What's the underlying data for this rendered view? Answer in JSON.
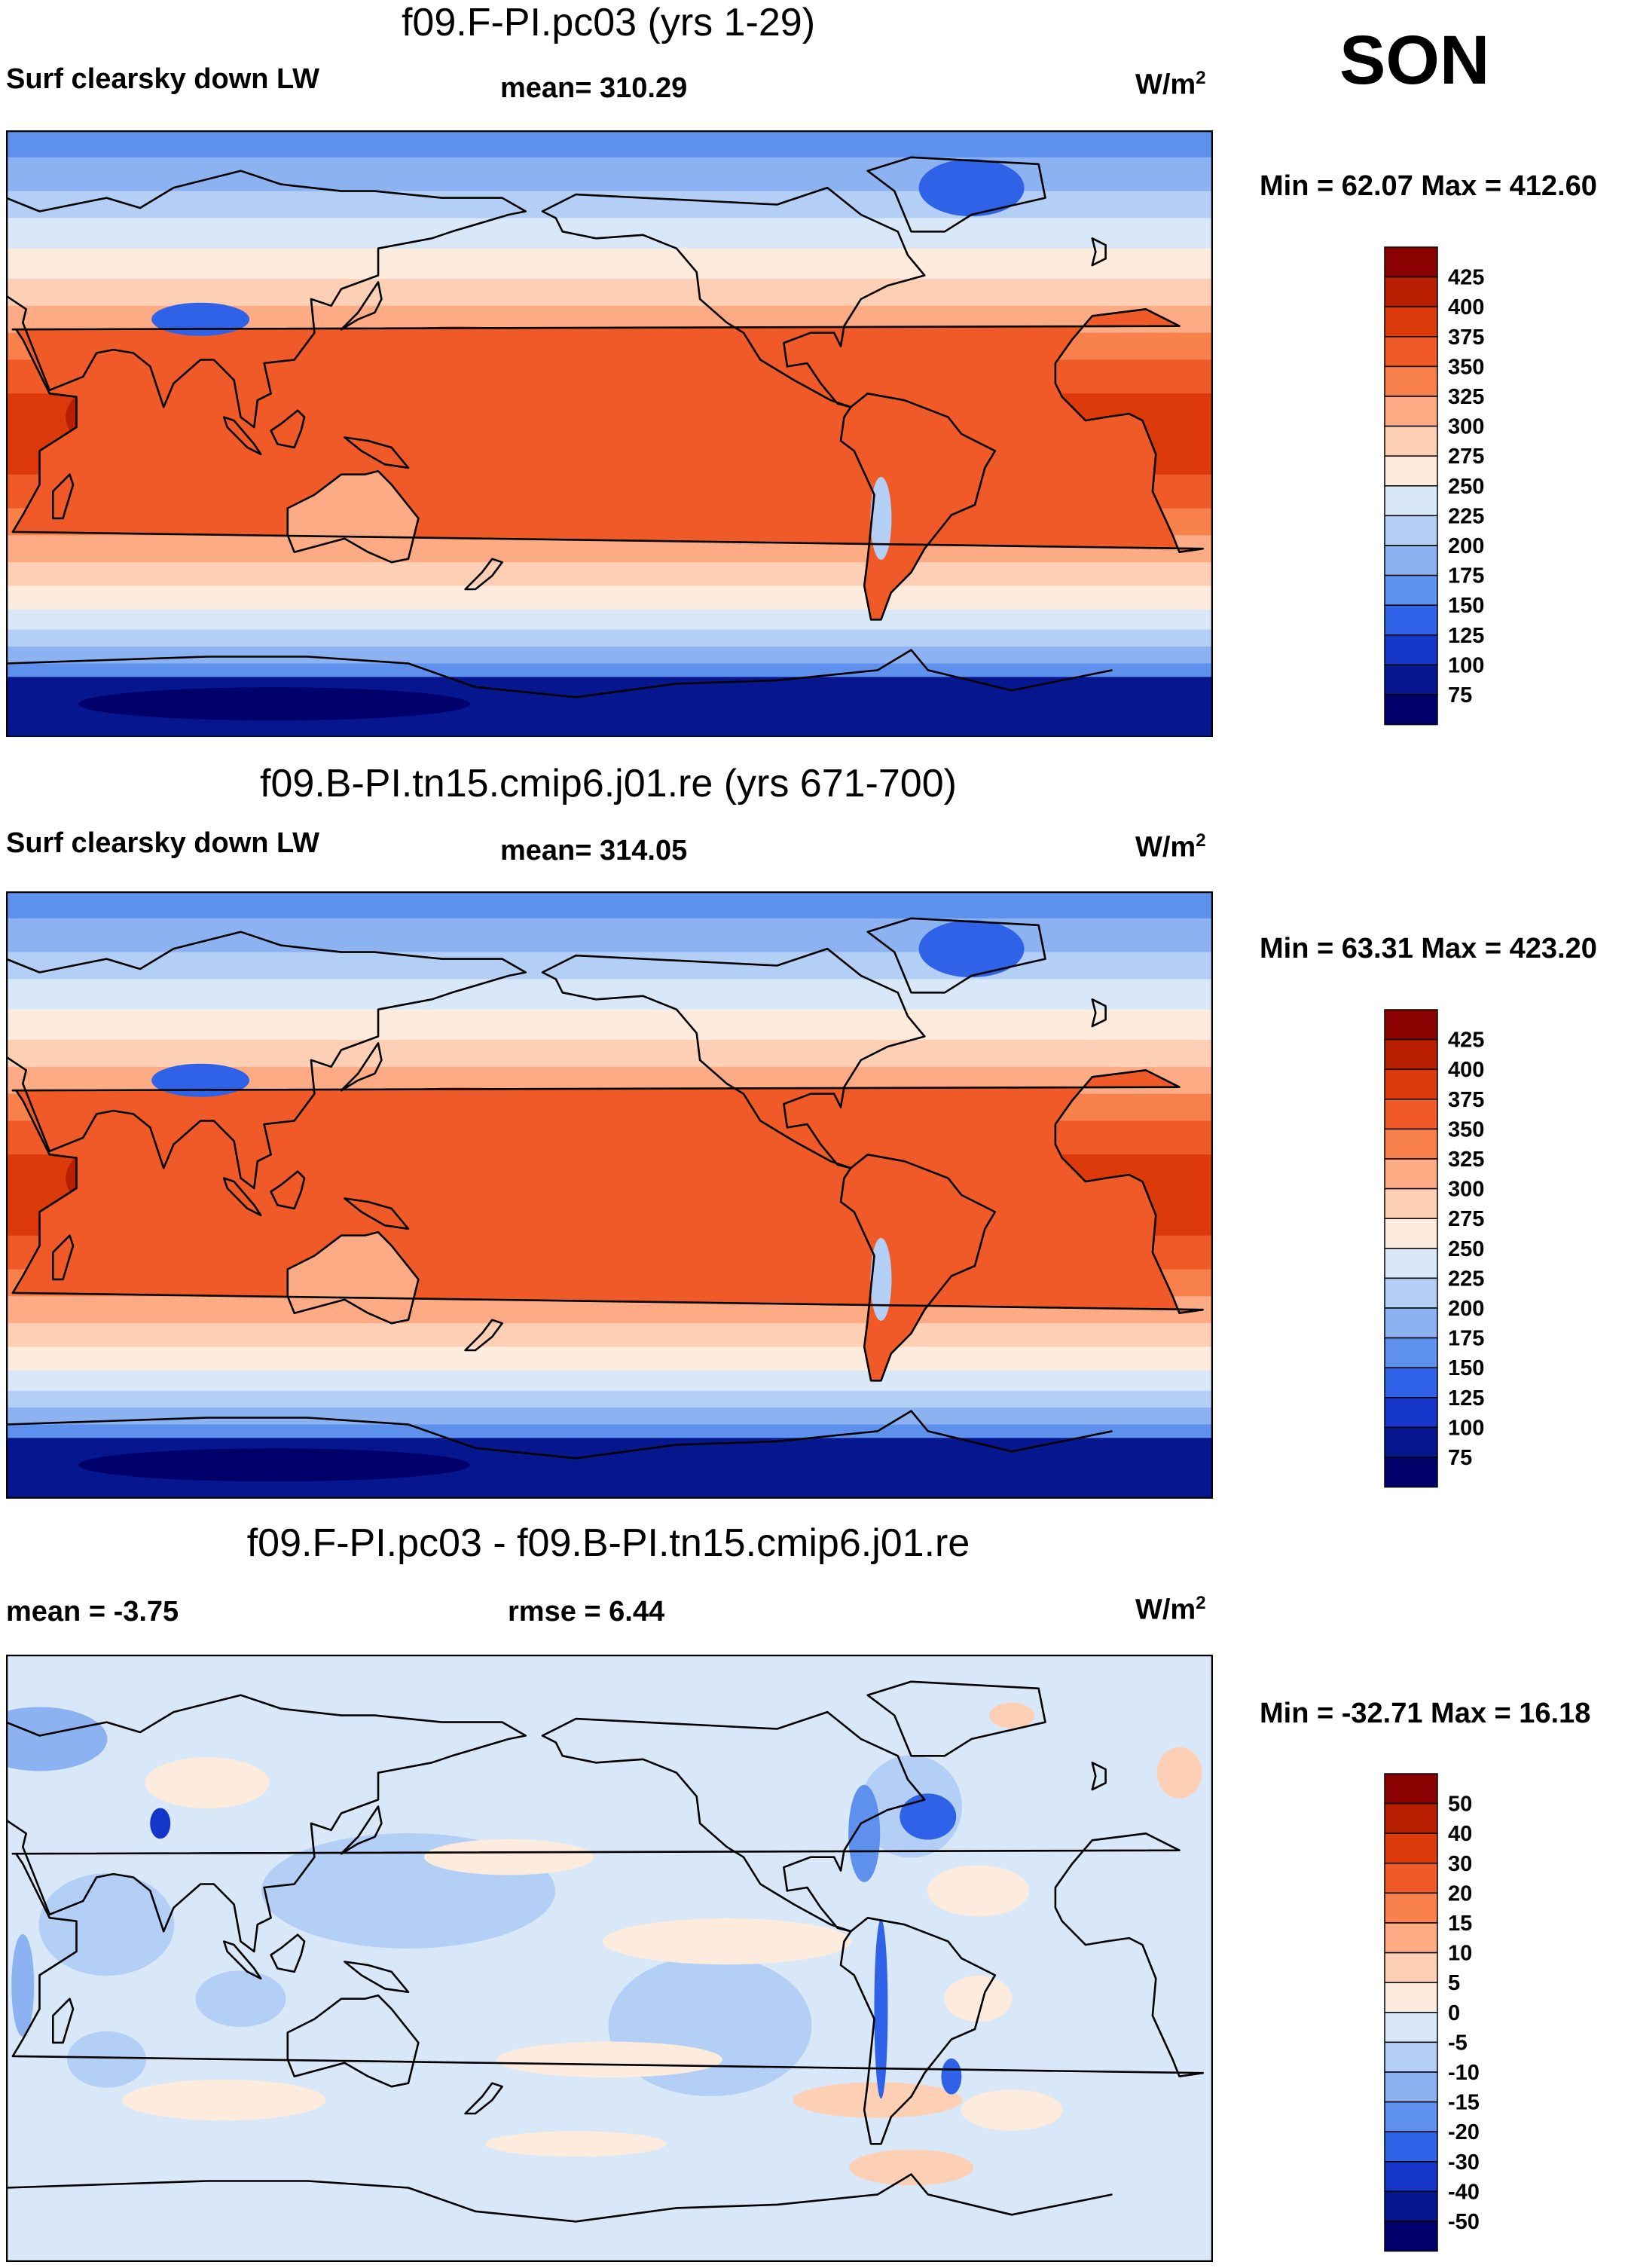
{
  "season": "SON",
  "panels": [
    {
      "title": "f09.F-PI.pc03 (yrs 1-29)",
      "left_label": "Surf clearsky down LW",
      "center_label": "mean= 310.29",
      "units_base": "W/m",
      "units_exp": "2",
      "minmax": "Min =  62.07 Max = 412.60"
    },
    {
      "title": "f09.B-PI.tn15.cmip6.j01.re (yrs 671-700)",
      "left_label": "Surf clearsky down LW",
      "center_label": "mean= 314.05",
      "units_base": "W/m",
      "units_exp": "2",
      "minmax": "Min =  63.31 Max = 423.20"
    },
    {
      "title": "f09.F-PI.pc03 - f09.B-PI.tn15.cmip6.j01.re",
      "left_label": "mean =  -3.75",
      "center_label": "rmse =   6.44",
      "units_base": "W/m",
      "units_exp": "2",
      "minmax": "Min = -32.71 Max =  16.18"
    }
  ],
  "chart_data": [
    {
      "type": "heatmap",
      "title": "f09.F-PI.pc03 (yrs 1-29)",
      "variable": "Surf clearsky down LW",
      "season": "SON",
      "mean": 310.29,
      "min": 62.07,
      "max": 412.6,
      "units": "W/m2",
      "colorbar_levels": [
        425,
        400,
        375,
        350,
        325,
        300,
        275,
        250,
        225,
        200,
        175,
        150,
        125,
        100,
        75
      ],
      "colorbar_colors": [
        "#8b0000",
        "#b81e00",
        "#dc3a0a",
        "#f05a28",
        "#f8804a",
        "#fcab85",
        "#fdd0b6",
        "#fdebdd",
        "#d8e8f8",
        "#b3cff5",
        "#8cb2f2",
        "#5e90ee",
        "#2f62e6",
        "#1536c8",
        "#05168f",
        "#00006b"
      ]
    },
    {
      "type": "heatmap",
      "title": "f09.B-PI.tn15.cmip6.j01.re (yrs 671-700)",
      "variable": "Surf clearsky down LW",
      "season": "SON",
      "mean": 314.05,
      "min": 63.31,
      "max": 423.2,
      "units": "W/m2",
      "colorbar_levels": [
        425,
        400,
        375,
        350,
        325,
        300,
        275,
        250,
        225,
        200,
        175,
        150,
        125,
        100,
        75
      ],
      "colorbar_colors": [
        "#8b0000",
        "#b81e00",
        "#dc3a0a",
        "#f05a28",
        "#f8804a",
        "#fcab85",
        "#fdd0b6",
        "#fdebdd",
        "#d8e8f8",
        "#b3cff5",
        "#8cb2f2",
        "#5e90ee",
        "#2f62e6",
        "#1536c8",
        "#05168f",
        "#00006b"
      ]
    },
    {
      "type": "heatmap",
      "title": "f09.F-PI.pc03 - f09.B-PI.tn15.cmip6.j01.re",
      "variable": "difference",
      "season": "SON",
      "mean": -3.75,
      "rmse": 6.44,
      "min": -32.71,
      "max": 16.18,
      "units": "W/m2",
      "colorbar_levels": [
        50,
        40,
        30,
        20,
        15,
        10,
        5,
        0,
        -5,
        -10,
        -15,
        -20,
        -30,
        -40,
        -50
      ],
      "colorbar_colors": [
        "#8b0000",
        "#b81e00",
        "#dc3a0a",
        "#f05a28",
        "#f8804a",
        "#fcab85",
        "#fdd0b6",
        "#fdebdd",
        "#d8e8f8",
        "#b3cff5",
        "#8cb2f2",
        "#5e90ee",
        "#2f62e6",
        "#1536c8",
        "#05168f",
        "#00006b"
      ]
    }
  ]
}
